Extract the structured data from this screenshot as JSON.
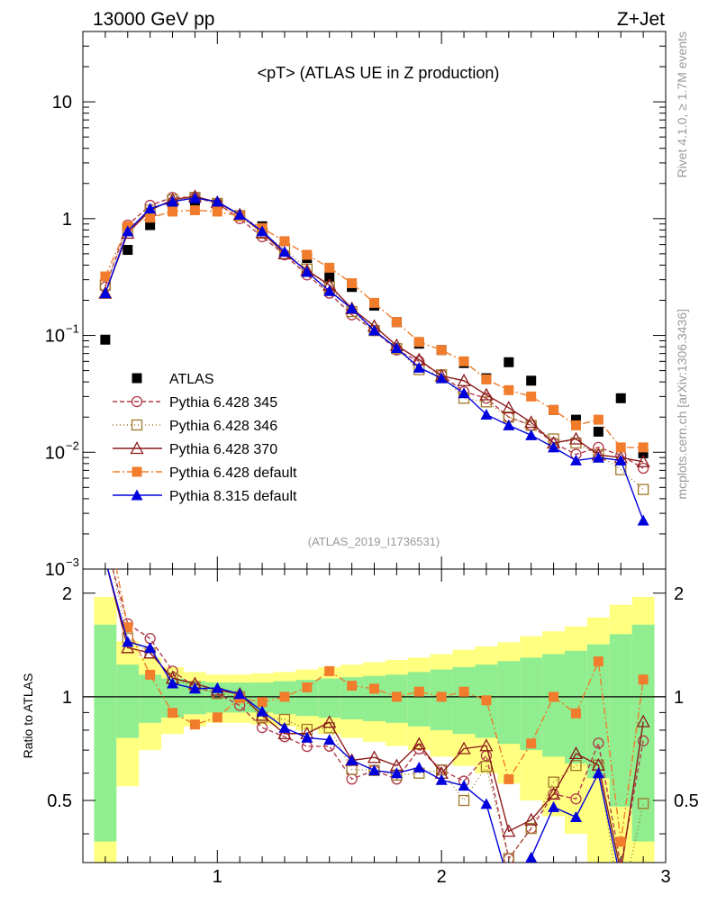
{
  "header": {
    "left": "13000 GeV pp",
    "right": "Z+Jet"
  },
  "side": {
    "top": "Rivet 4.1.0, ≥ 1.7M events",
    "bottom": "mcplots.cern.ch [arXiv:1306.3436]"
  },
  "chart_data": {
    "type": "scatter",
    "title": "<pT> (ATLAS UE in Z production)",
    "analysis_id": "(ATLAS_2019_I1736531)",
    "xlabel": "",
    "ylabel_ratio": "Ratio to ATLAS",
    "xlim": [
      0.4,
      3.0
    ],
    "ylim": [
      0.001,
      40
    ],
    "ylim_ratio": [
      0.33,
      2.35
    ],
    "x_ticks": [
      "1",
      "2",
      "3"
    ],
    "y_ticks": [
      "10^-3",
      "10^-2",
      "10^-1",
      "1",
      "10"
    ],
    "ratio_ticks": [
      "0.5",
      "1",
      "2"
    ],
    "x": [
      0.5,
      0.6,
      0.7,
      0.8,
      0.9,
      1.0,
      1.1,
      1.2,
      1.3,
      1.4,
      1.5,
      1.6,
      1.7,
      1.8,
      1.9,
      2.0,
      2.1,
      2.2,
      2.3,
      2.4,
      2.5,
      2.6,
      2.7,
      2.8,
      2.9
    ],
    "series": [
      {
        "name": "ATLAS",
        "color": "#000000",
        "marker": "square",
        "dash": "none",
        "values": [
          0.092,
          0.54,
          0.88,
          1.28,
          1.42,
          1.32,
          1.06,
          0.86,
          0.64,
          0.46,
          0.32,
          0.26,
          0.18,
          0.13,
          0.085,
          0.075,
          0.058,
          0.043,
          0.059,
          0.041,
          0.023,
          0.019,
          0.015,
          0.029,
          0.0098
        ]
      },
      {
        "name": "Pythia 6.428 345",
        "color": "#b03a4a",
        "marker": "circle-open",
        "dash": "5,3",
        "values": [
          0.26,
          0.88,
          1.3,
          1.52,
          1.52,
          1.35,
          1.0,
          0.7,
          0.49,
          0.33,
          0.23,
          0.15,
          0.11,
          0.075,
          0.06,
          0.046,
          0.033,
          0.029,
          0.02,
          0.017,
          0.012,
          0.0096,
          0.011,
          0.0094,
          0.0073
        ]
      },
      {
        "name": "Pythia 6.428 346",
        "color": "#a0782a",
        "marker": "square-open",
        "dash": "1,3",
        "values": [
          0.27,
          0.8,
          1.18,
          1.45,
          1.52,
          1.35,
          1.06,
          0.75,
          0.55,
          0.37,
          0.26,
          0.16,
          0.11,
          0.077,
          0.051,
          0.046,
          0.029,
          0.027,
          0.02,
          0.017,
          0.013,
          0.012,
          0.0095,
          0.0071,
          0.0048
        ]
      },
      {
        "name": "Pythia 6.428 370",
        "color": "#8b1a1a",
        "marker": "triangle-open",
        "dash": "none",
        "values": [
          0.23,
          0.75,
          1.18,
          1.45,
          1.55,
          1.38,
          1.08,
          0.76,
          0.5,
          0.36,
          0.27,
          0.17,
          0.12,
          0.082,
          0.062,
          0.045,
          0.041,
          0.031,
          0.024,
          0.018,
          0.012,
          0.013,
          0.0095,
          0.009,
          0.0083
        ]
      },
      {
        "name": "Pythia 6.428 default",
        "color": "#f07c2c",
        "marker": "square",
        "dash": "8,3,2,3",
        "values": [
          0.32,
          0.86,
          1.02,
          1.15,
          1.18,
          1.15,
          1.05,
          0.83,
          0.64,
          0.49,
          0.38,
          0.28,
          0.19,
          0.13,
          0.088,
          0.075,
          0.06,
          0.042,
          0.034,
          0.03,
          0.023,
          0.017,
          0.019,
          0.011,
          0.011
        ]
      },
      {
        "name": "Pythia 8.315 default",
        "color": "#0000dd",
        "marker": "triangle",
        "dash": "none",
        "values": [
          0.23,
          0.78,
          1.22,
          1.4,
          1.5,
          1.4,
          1.08,
          0.78,
          0.52,
          0.35,
          0.24,
          0.17,
          0.11,
          0.078,
          0.053,
          0.043,
          0.032,
          0.021,
          0.017,
          0.014,
          0.011,
          0.0085,
          0.009,
          0.0085,
          0.0026
        ]
      }
    ],
    "ratio_bands": {
      "green_half_width": [
        0.62,
        0.24,
        0.16,
        0.13,
        0.11,
        0.1,
        0.1,
        0.1,
        0.11,
        0.12,
        0.13,
        0.14,
        0.15,
        0.16,
        0.18,
        0.2,
        0.22,
        0.24,
        0.27,
        0.3,
        0.33,
        0.36,
        0.42,
        0.52,
        0.62
      ],
      "yellow_half_width": [
        0.95,
        0.45,
        0.3,
        0.22,
        0.18,
        0.16,
        0.16,
        0.17,
        0.18,
        0.2,
        0.22,
        0.24,
        0.26,
        0.28,
        0.3,
        0.33,
        0.37,
        0.4,
        0.44,
        0.5,
        0.55,
        0.6,
        0.7,
        0.85,
        0.95
      ]
    }
  }
}
